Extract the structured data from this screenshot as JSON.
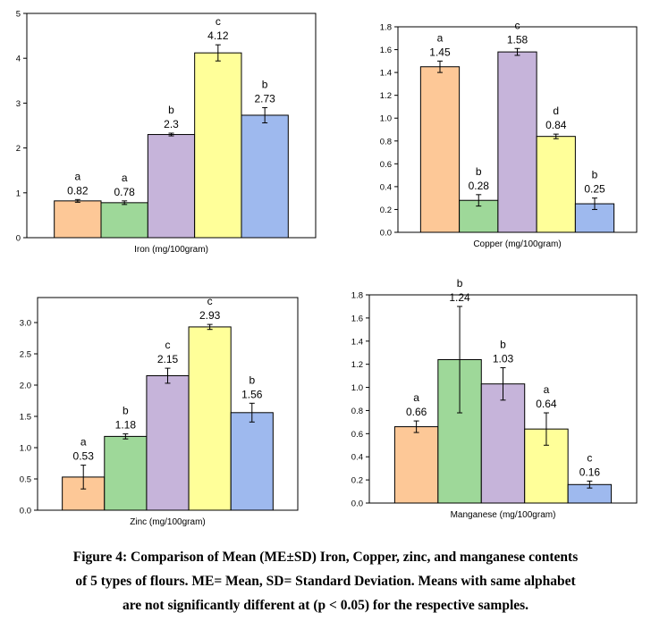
{
  "colors": [
    "#fdc897",
    "#9ed899",
    "#c6b4da",
    "#ffff99",
    "#9eb9ee"
  ],
  "chart_data": [
    {
      "type": "bar",
      "xlabel": "Iron (mg/100gram)",
      "ylim": [
        0,
        5
      ],
      "yticks": [
        "0",
        "1",
        "2",
        "3",
        "4",
        "5"
      ],
      "values": [
        0.82,
        0.78,
        2.3,
        4.12,
        2.73
      ],
      "value_labels": [
        "0.82",
        "0.78",
        "2.3",
        "4.12",
        "2.73"
      ],
      "errors": [
        0.03,
        0.04,
        0.03,
        0.18,
        0.17
      ],
      "letters": [
        "a",
        "a",
        "b",
        "c",
        "b"
      ]
    },
    {
      "type": "bar",
      "xlabel": "Copper (mg/100gram)",
      "ylim": [
        0,
        1.8
      ],
      "yticks": [
        "0.0",
        "0.2",
        "0.4",
        "0.6",
        "0.8",
        "1.0",
        "1.2",
        "1.4",
        "1.6",
        "1.8"
      ],
      "values": [
        1.45,
        0.28,
        1.58,
        0.84,
        0.25
      ],
      "value_labels": [
        "1.45",
        "0.28",
        "1.58",
        "0.84",
        "0.25"
      ],
      "errors": [
        0.05,
        0.05,
        0.03,
        0.02,
        0.05
      ],
      "letters": [
        "a",
        "b",
        "c",
        "d",
        "b"
      ]
    },
    {
      "type": "bar",
      "xlabel": "Zinc (mg/100gram)",
      "ylim": [
        0,
        3.4
      ],
      "yticks": [
        "0.0",
        "0.5",
        "1.0",
        "1.5",
        "2.0",
        "2.5",
        "3.0"
      ],
      "values": [
        0.53,
        1.18,
        2.15,
        2.93,
        1.56
      ],
      "value_labels": [
        "0.53",
        "1.18",
        "2.15",
        "2.93",
        "1.56"
      ],
      "errors": [
        0.19,
        0.04,
        0.12,
        0.04,
        0.15
      ],
      "letters": [
        "a",
        "b",
        "c",
        "c",
        "b"
      ]
    },
    {
      "type": "bar",
      "xlabel": "Manganese (mg/100gram)",
      "ylim": [
        0,
        1.8
      ],
      "yticks": [
        "0.0",
        "0.2",
        "0.4",
        "0.6",
        "0.8",
        "1.0",
        "1.2",
        "1.4",
        "1.6",
        "1.8"
      ],
      "values": [
        0.66,
        1.24,
        1.03,
        0.64,
        0.16
      ],
      "value_labels": [
        "0.66",
        "1.24",
        "1.03",
        "0.64",
        "0.16"
      ],
      "errors": [
        0.05,
        0.46,
        0.14,
        0.14,
        0.03
      ],
      "letters": [
        "a",
        "b",
        "b",
        "a",
        "c"
      ]
    }
  ],
  "caption": {
    "line1": "Figure 4: Comparison of Mean (ME±SD) Iron, Copper, zinc, and manganese contents",
    "line2": "of 5 types of flours. ME= Mean, SD= Standard Deviation. Means with same alphabet",
    "line3": "are not significantly different at (p < 0.05) for the respective samples."
  }
}
